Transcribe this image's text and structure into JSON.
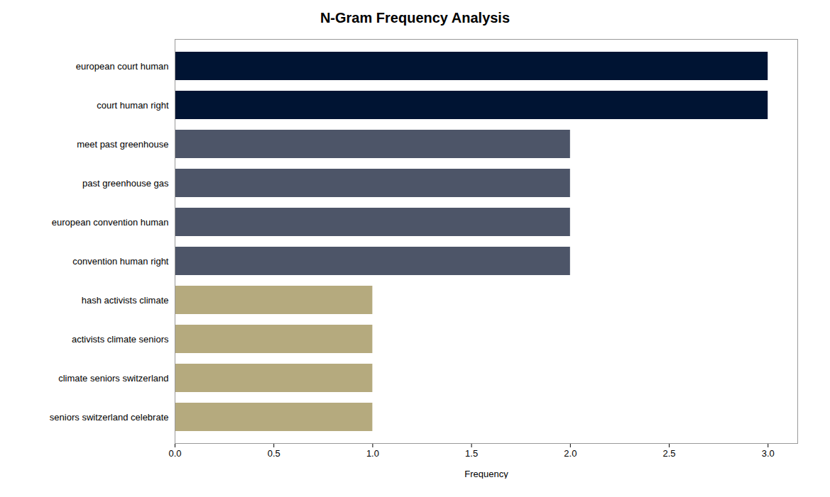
{
  "chart_data": {
    "type": "bar",
    "orientation": "horizontal",
    "title": "N-Gram Frequency Analysis",
    "xlabel": "Frequency",
    "categories": [
      "seniors switzerland celebrate",
      "climate seniors switzerland",
      "activists climate seniors",
      "hash activists climate",
      "convention human right",
      "european convention human",
      "past greenhouse gas",
      "meet past greenhouse",
      "court human right",
      "european court human"
    ],
    "values": [
      1,
      1,
      1,
      1,
      2,
      2,
      2,
      2,
      3,
      3
    ],
    "colors": [
      "#b5aa7e",
      "#b5aa7e",
      "#b5aa7e",
      "#b5aa7e",
      "#4d5568",
      "#4d5568",
      "#4d5568",
      "#4d5568",
      "#001433",
      "#001433"
    ],
    "xlim": [
      0,
      3.15
    ],
    "xticks": [
      {
        "value": 0,
        "label": "0.0"
      },
      0.5,
      {
        "value": 1,
        "label": "1.0"
      },
      1.5,
      {
        "value": 2,
        "label": "2.0"
      },
      2.5,
      {
        "value": 3,
        "label": "3.0"
      }
    ],
    "grid": false
  }
}
